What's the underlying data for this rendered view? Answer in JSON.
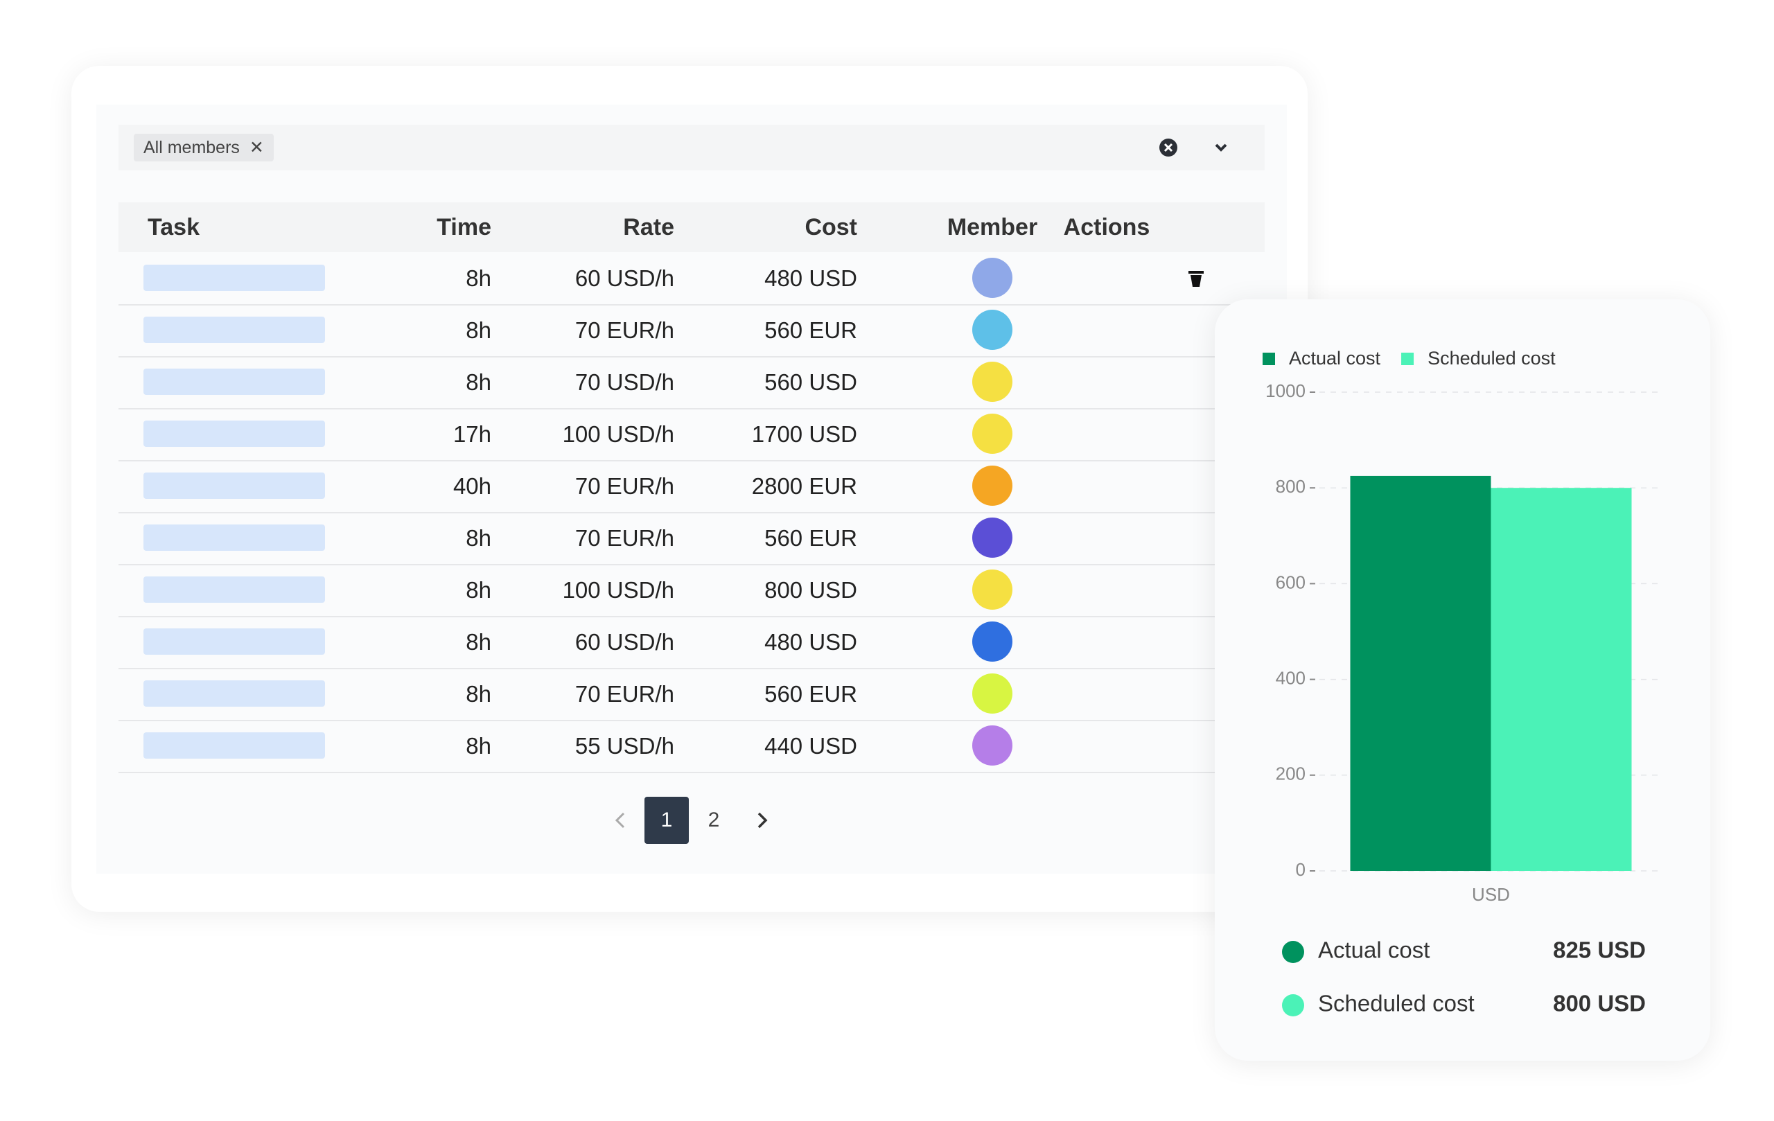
{
  "filter": {
    "chip": "All members"
  },
  "table": {
    "headers": [
      "Task",
      "Time",
      "Rate",
      "Cost",
      "Member",
      "Actions"
    ],
    "rows": [
      [
        "8h",
        "60 USD/h",
        "480 USD"
      ],
      [
        "8h",
        "70 EUR/h",
        "560 EUR"
      ],
      [
        "8h",
        "70 USD/h",
        "560 USD"
      ],
      [
        "17h",
        "100 USD/h",
        "1700 USD"
      ],
      [
        "40h",
        "70 EUR/h",
        "2800 EUR"
      ],
      [
        "8h",
        "70 EUR/h",
        "560 EUR"
      ],
      [
        "8h",
        "100 USD/h",
        "800 USD"
      ],
      [
        "8h",
        "60 USD/h",
        "480 USD"
      ],
      [
        "8h",
        "70 EUR/h",
        "560 EUR"
      ],
      [
        "8h",
        "55 USD/h",
        "440 USD"
      ]
    ]
  },
  "pagination": {
    "pages": [
      "1",
      "2"
    ],
    "current": 0
  },
  "chart_data": {
    "type": "bar",
    "categories": [
      "USD"
    ],
    "series": [
      {
        "name": "Actual cost",
        "color": "#00925e",
        "values": [
          825
        ]
      },
      {
        "name": "Scheduled cost",
        "color": "#4bf2b7",
        "values": [
          800
        ]
      }
    ],
    "ylim": [
      0,
      1000
    ],
    "yticks": [
      0,
      200,
      400,
      600,
      800,
      1000
    ],
    "grid": true
  },
  "summary": [
    {
      "label": "Actual cost",
      "value": "825 USD"
    },
    {
      "label": "Scheduled cost",
      "value": "800 USD"
    }
  ]
}
